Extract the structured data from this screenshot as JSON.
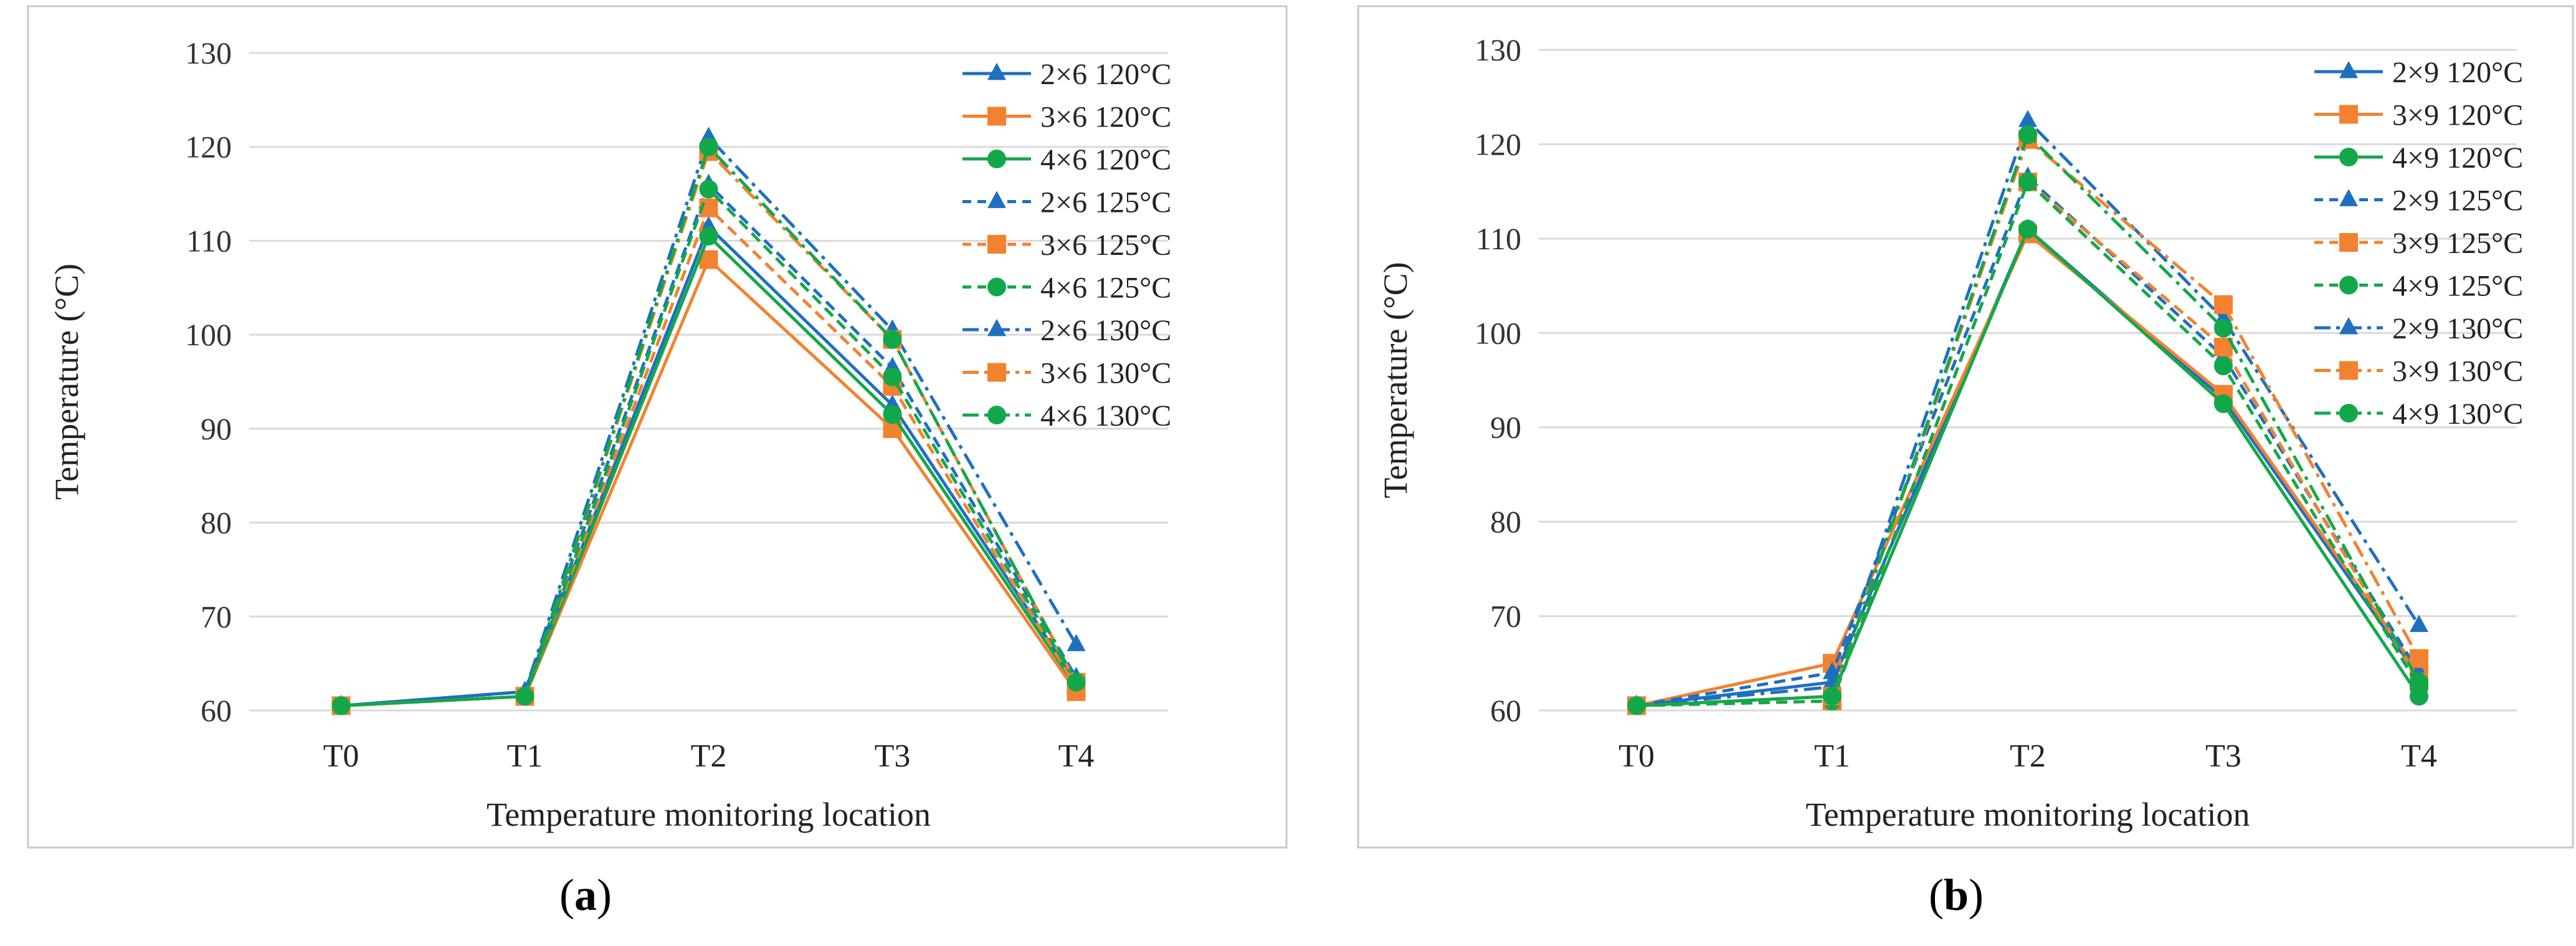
{
  "colors": {
    "blue": "#1f6fc1",
    "orange": "#f28230",
    "green": "#12a84a",
    "grid": "#d9d9d9",
    "frame": "#c8c8c8"
  },
  "captions": [
    {
      "open": "(",
      "letter": "a",
      "close": ")"
    },
    {
      "open": "(",
      "letter": "b",
      "close": ")"
    }
  ],
  "chart_data": [
    {
      "type": "line",
      "panel": "a",
      "categories": [
        "T0",
        "T1",
        "T2",
        "T3",
        "T4"
      ],
      "xlabel": "Temperature monitoring location",
      "ylabel": "Temperature (°C)",
      "ylim": [
        60,
        130
      ],
      "yticks": [
        "60",
        "70",
        "80",
        "90",
        "100",
        "110",
        "120",
        "130"
      ],
      "legend_position": "top-right",
      "grid": true,
      "series": [
        {
          "name": "2×6 120°C",
          "color": "blue",
          "marker": "triangle",
          "dash": "solid",
          "values": [
            60.5,
            62.0,
            111.5,
            92.5,
            63.0
          ]
        },
        {
          "name": "3×6 120°C",
          "color": "orange",
          "marker": "square",
          "dash": "solid",
          "values": [
            60.5,
            61.5,
            108.0,
            90.0,
            62.0
          ]
        },
        {
          "name": "4×6 120°C",
          "color": "green",
          "marker": "circle",
          "dash": "solid",
          "values": [
            60.5,
            61.5,
            110.5,
            91.5,
            62.5
          ]
        },
        {
          "name": "2×6 125°C",
          "color": "blue",
          "marker": "triangle",
          "dash": "dash",
          "values": [
            60.5,
            62.0,
            116.0,
            96.5,
            63.5
          ]
        },
        {
          "name": "3×6 125°C",
          "color": "orange",
          "marker": "square",
          "dash": "dash",
          "values": [
            60.5,
            61.5,
            113.5,
            94.5,
            62.5
          ]
        },
        {
          "name": "4×6 125°C",
          "color": "green",
          "marker": "circle",
          "dash": "dash",
          "values": [
            60.5,
            61.5,
            115.5,
            95.5,
            63.0
          ]
        },
        {
          "name": "2×6 130°C",
          "color": "blue",
          "marker": "triangle",
          "dash": "dashdot",
          "values": [
            60.5,
            62.0,
            121.0,
            100.5,
            67.0
          ]
        },
        {
          "name": "3×6 130°C",
          "color": "orange",
          "marker": "square",
          "dash": "dashdot",
          "values": [
            60.5,
            61.5,
            119.5,
            99.5,
            63.0
          ]
        },
        {
          "name": "4×6 130°C",
          "color": "green",
          "marker": "circle",
          "dash": "dashdot",
          "values": [
            60.5,
            61.5,
            120.0,
            99.5,
            63.0
          ]
        }
      ]
    },
    {
      "type": "line",
      "panel": "b",
      "categories": [
        "T0",
        "T1",
        "T2",
        "T3",
        "T4"
      ],
      "xlabel": "Temperature monitoring location",
      "ylabel": "Temperature (°C)",
      "ylim": [
        60,
        130
      ],
      "yticks": [
        "60",
        "70",
        "80",
        "90",
        "100",
        "110",
        "120",
        "130"
      ],
      "legend_position": "top-right",
      "grid": true,
      "series": [
        {
          "name": "2×9 120°C",
          "color": "blue",
          "marker": "triangle",
          "dash": "solid",
          "values": [
            60.5,
            63.0,
            111.0,
            93.0,
            63.5
          ]
        },
        {
          "name": "3×9 120°C",
          "color": "orange",
          "marker": "square",
          "dash": "solid",
          "values": [
            60.5,
            65.0,
            110.5,
            93.5,
            64.0
          ]
        },
        {
          "name": "4×9 120°C",
          "color": "green",
          "marker": "circle",
          "dash": "solid",
          "values": [
            60.5,
            61.5,
            111.0,
            92.5,
            61.5
          ]
        },
        {
          "name": "2×9 125°C",
          "color": "blue",
          "marker": "triangle",
          "dash": "dash",
          "values": [
            60.5,
            64.0,
            116.5,
            97.5,
            64.0
          ]
        },
        {
          "name": "3×9 125°C",
          "color": "orange",
          "marker": "square",
          "dash": "dash",
          "values": [
            60.5,
            61.0,
            116.0,
            98.5,
            63.0
          ]
        },
        {
          "name": "4×9 125°C",
          "color": "green",
          "marker": "circle",
          "dash": "dash",
          "values": [
            60.5,
            61.0,
            116.0,
            96.5,
            62.5
          ]
        },
        {
          "name": "2×9 130°C",
          "color": "blue",
          "marker": "triangle",
          "dash": "dashdot",
          "values": [
            60.5,
            62.5,
            122.5,
            101.5,
            69.0
          ]
        },
        {
          "name": "3×9 130°C",
          "color": "orange",
          "marker": "square",
          "dash": "dashdot",
          "values": [
            60.5,
            61.5,
            120.5,
            103.0,
            65.5
          ]
        },
        {
          "name": "4×9 130°C",
          "color": "green",
          "marker": "circle",
          "dash": "dashdot",
          "values": [
            60.5,
            61.5,
            121.0,
            100.5,
            63.0
          ]
        }
      ]
    }
  ]
}
